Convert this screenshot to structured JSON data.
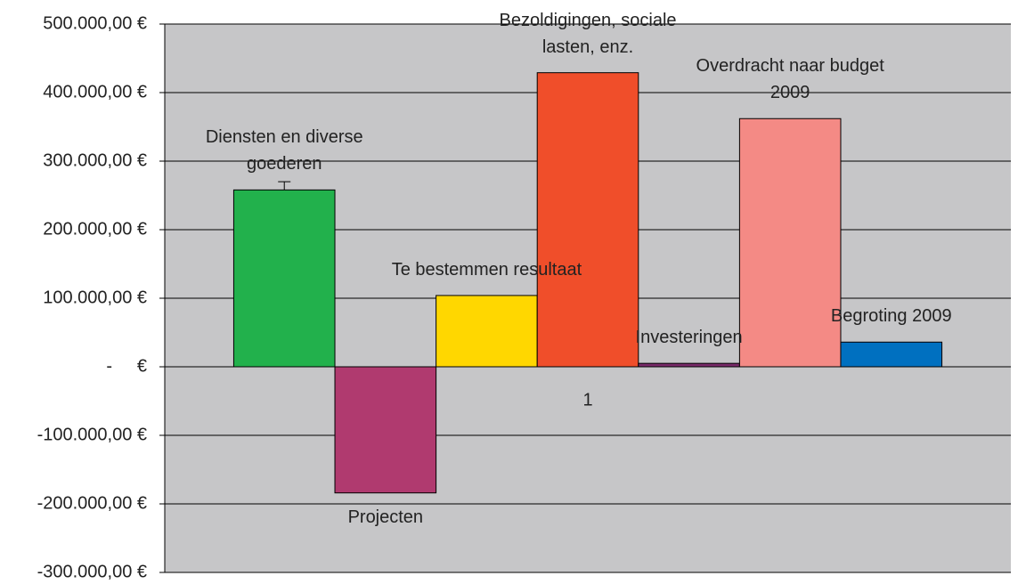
{
  "chart_data": {
    "type": "bar",
    "categories": [
      "1"
    ],
    "series": [
      {
        "name": "Diensten en diverse goederen",
        "color": "#22b14c",
        "values": [
          258000
        ],
        "errors": [
          12000
        ]
      },
      {
        "name": "Projecten",
        "color": "#b03a6f",
        "values": [
          -184000
        ]
      },
      {
        "name": "Te bestemmen resultaat",
        "color": "#ffd700",
        "values": [
          104000
        ]
      },
      {
        "name": "Bezoldigingen, sociale lasten, enz.",
        "color": "#f04e2a",
        "values": [
          429000
        ]
      },
      {
        "name": "Investeringen",
        "color": "#7a2a6a",
        "values": [
          5000
        ]
      },
      {
        "name": "Overdracht naar budget 2009",
        "color": "#f48a85",
        "values": [
          362000
        ]
      },
      {
        "name": "Begroting 2009",
        "color": "#0070c0",
        "values": [
          36000
        ]
      }
    ],
    "ylim": [
      -300000,
      500000
    ],
    "yticks": [
      {
        "value": -300000,
        "label": "-300.000,00 €"
      },
      {
        "value": -200000,
        "label": "-200.000,00 €"
      },
      {
        "value": -100000,
        "label": "-100.000,00 €"
      },
      {
        "value": 0,
        "label": "-     €"
      },
      {
        "value": 100000,
        "label": "100.000,00 €"
      },
      {
        "value": 200000,
        "label": "200.000,00 €"
      },
      {
        "value": 300000,
        "label": "300.000,00 €"
      },
      {
        "value": 400000,
        "label": "400.000,00 €"
      },
      {
        "value": 500000,
        "label": "500.000,00 €"
      }
    ],
    "grid": true
  }
}
